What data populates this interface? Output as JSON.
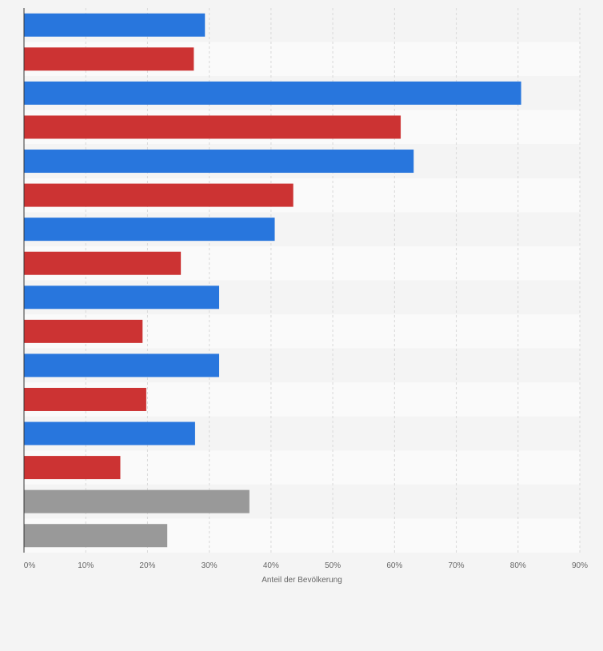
{
  "chart_data": {
    "type": "bar",
    "orientation": "horizontal",
    "xlabel": "Anteil der Bevölkerung",
    "xlim": [
      0,
      90
    ],
    "ticks": [
      "0%",
      "10%",
      "20%",
      "30%",
      "40%",
      "50%",
      "60%",
      "70%",
      "80%",
      "90%"
    ],
    "grid": true,
    "category_labels_visible": false,
    "bars": [
      {
        "value": 29.3,
        "color": "#2876dd"
      },
      {
        "value": 27.5,
        "color": "#cc3333"
      },
      {
        "value": 80.5,
        "color": "#2876dd"
      },
      {
        "value": 61.0,
        "color": "#cc3333"
      },
      {
        "value": 63.1,
        "color": "#2876dd"
      },
      {
        "value": 43.6,
        "color": "#cc3333"
      },
      {
        "value": 40.6,
        "color": "#2876dd"
      },
      {
        "value": 25.4,
        "color": "#cc3333"
      },
      {
        "value": 31.6,
        "color": "#2876dd"
      },
      {
        "value": 19.2,
        "color": "#cc3333"
      },
      {
        "value": 31.6,
        "color": "#2876dd"
      },
      {
        "value": 19.8,
        "color": "#cc3333"
      },
      {
        "value": 27.7,
        "color": "#2876dd"
      },
      {
        "value": 15.6,
        "color": "#cc3333"
      },
      {
        "value": 36.5,
        "color": "#999999"
      },
      {
        "value": 23.2,
        "color": "#999999"
      }
    ]
  }
}
